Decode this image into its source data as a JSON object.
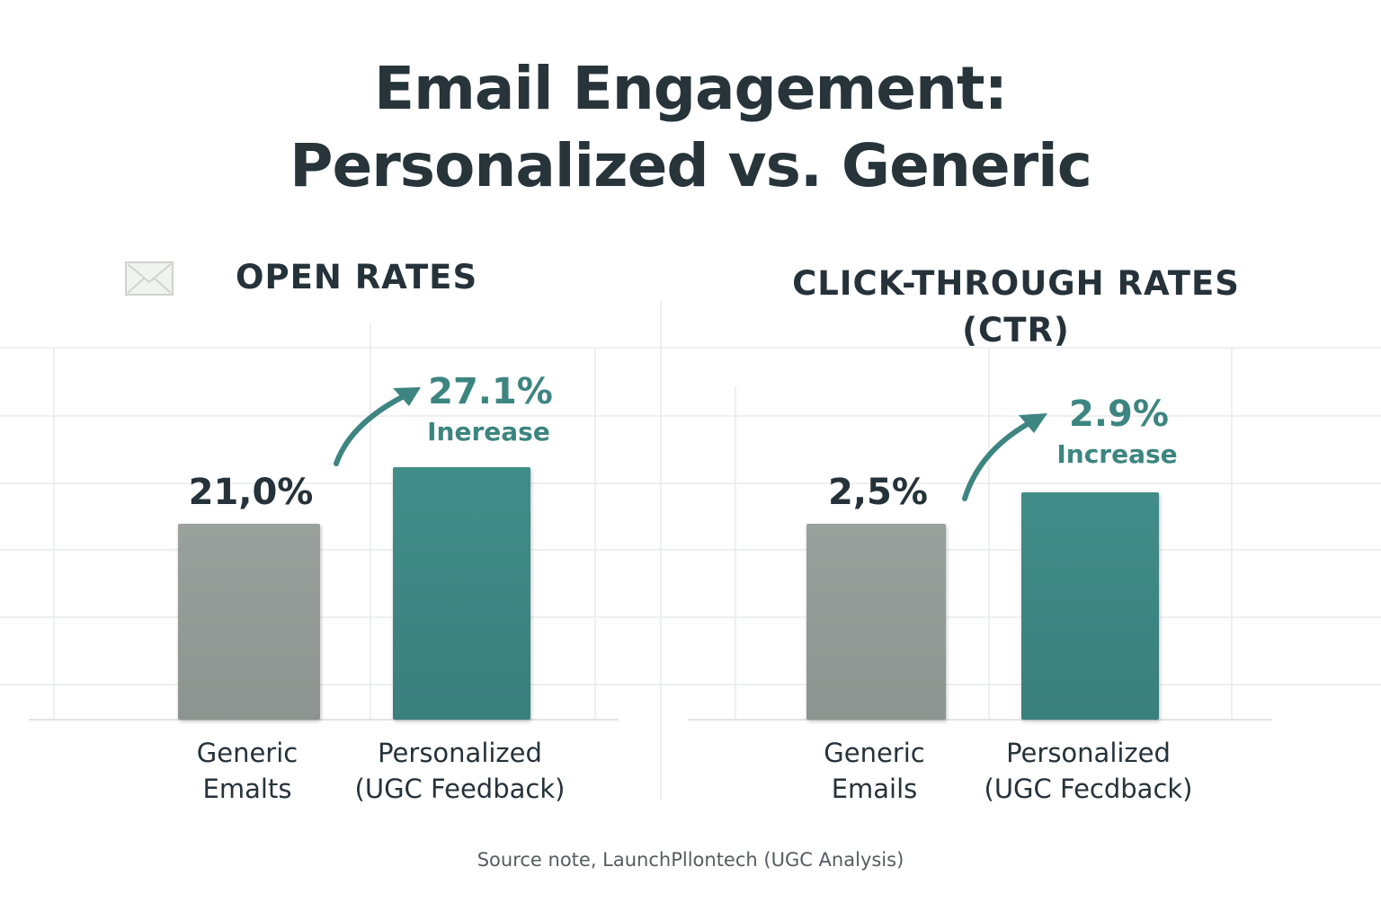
{
  "title": {
    "line1": "Email Engagement:",
    "line2": "Personalized vs. Generic"
  },
  "colors": {
    "generic_bar": "#939996",
    "personalized_bar": "#3e8784",
    "accent_text": "#3d8580",
    "text": "#26323a"
  },
  "icons": [
    "mail-icon"
  ],
  "chart_data": [
    {
      "type": "bar",
      "title": "OPEN RATES",
      "categories": [
        "Generic Emails",
        "Personalized (UGC Feedback)"
      ],
      "category_labels": [
        {
          "line1": "Generic",
          "line2": "Emalts"
        },
        {
          "line1": "Personalized",
          "line2": "(UGC Feedback)"
        }
      ],
      "values": [
        21.0,
        27.1
      ],
      "value_labels": [
        "21,0%",
        "27.1%"
      ],
      "annotation": "Inerease",
      "grid": true
    },
    {
      "type": "bar",
      "title": "CLICK-THROUGH RATES",
      "title_line2": "(CTR)",
      "categories": [
        "Generic Emails",
        "Personalized (UGC Feedback)"
      ],
      "category_labels": [
        {
          "line1": "Generic",
          "line2": "Emails"
        },
        {
          "line1": "Personalized",
          "line2": "(UGC Fecdback)"
        }
      ],
      "values": [
        2.5,
        2.9
      ],
      "value_labels": [
        "2,5%",
        "2.9%"
      ],
      "annotation": "Increase",
      "grid": true
    }
  ],
  "source": "Source note, LaunchPllontech (UGC Analysis)"
}
